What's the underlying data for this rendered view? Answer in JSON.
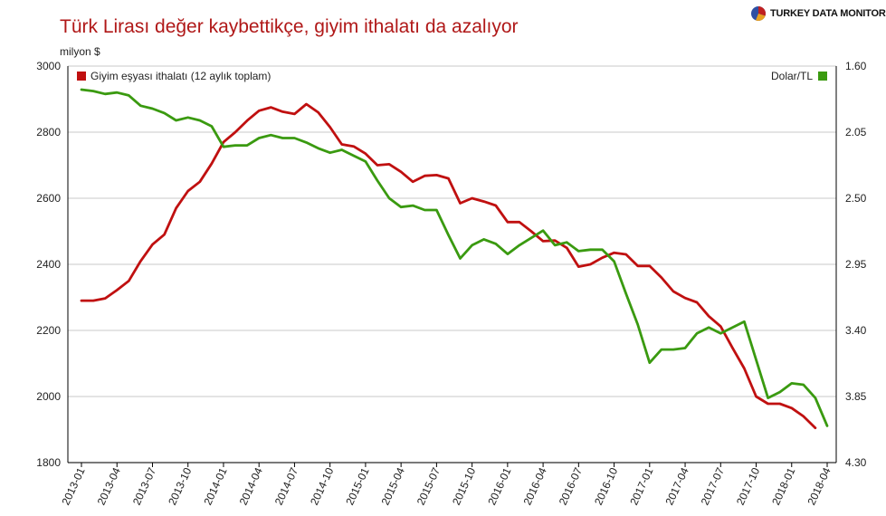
{
  "header": {
    "title": "Türk Lirası değer kaybettikçe, giyim ithalatı da azalıyor",
    "brand": "TURKEY DATA MONITOR",
    "brand_icon": "pie-logo-icon"
  },
  "colors": {
    "title": "#b01818",
    "imports_series": "#c01010",
    "usd_series": "#3a9a10",
    "grid": "#d4d4d4"
  },
  "chart_data": {
    "type": "line",
    "title": "Türk Lirası değer kaybettikçe, giyim ithalatı da azalıyor",
    "ylabel": "milyon $",
    "ylim": [
      1800,
      3000
    ],
    "y_ticks": [
      "1800",
      "2000",
      "2200",
      "2400",
      "2600",
      "2800",
      "3000"
    ],
    "y2lim": [
      1.6,
      4.3
    ],
    "y2_inverted": true,
    "y2_ticks": [
      "1.60",
      "2.05",
      "2.50",
      "2.95",
      "3.40",
      "3.85",
      "4.30"
    ],
    "x_ticks": [
      "2013-01",
      "2013-04",
      "2013-07",
      "2013-10",
      "2014-01",
      "2014-04",
      "2014-07",
      "2014-10",
      "2015-01",
      "2015-04",
      "2015-07",
      "2015-10",
      "2016-01",
      "2016-04",
      "2016-07",
      "2016-10",
      "2017-01",
      "2017-04",
      "2017-07",
      "2017-10",
      "2018-01",
      "2018-04"
    ],
    "grid": true,
    "series": [
      {
        "name": "Giyim eşyası ithalatı (12 aylık toplam)",
        "axis": "left",
        "legend_position": "top-left",
        "start": "2013-01",
        "values": [
          2290,
          2290,
          2297,
          2322,
          2350,
          2410,
          2460,
          2490,
          2570,
          2622,
          2650,
          2705,
          2770,
          2800,
          2835,
          2865,
          2875,
          2862,
          2855,
          2885,
          2860,
          2815,
          2763,
          2757,
          2735,
          2700,
          2703,
          2680,
          2650,
          2668,
          2670,
          2660,
          2585,
          2600,
          2590,
          2578,
          2528,
          2528,
          2500,
          2470,
          2472,
          2450,
          2393,
          2400,
          2420,
          2435,
          2430,
          2395,
          2395,
          2360,
          2318,
          2298,
          2285,
          2243,
          2212,
          2147,
          2085,
          2000,
          1978,
          1978,
          1965,
          1940,
          1905
        ]
      },
      {
        "name": "Dolar/TL",
        "axis": "right",
        "legend_position": "top-right",
        "start": "2013-01",
        "values": [
          1.76,
          1.77,
          1.79,
          1.78,
          1.8,
          1.87,
          1.89,
          1.92,
          1.97,
          1.95,
          1.97,
          2.01,
          2.15,
          2.14,
          2.14,
          2.09,
          2.07,
          2.09,
          2.09,
          2.12,
          2.16,
          2.19,
          2.17,
          2.21,
          2.25,
          2.38,
          2.5,
          2.56,
          2.55,
          2.58,
          2.58,
          2.75,
          2.91,
          2.82,
          2.78,
          2.81,
          2.88,
          2.82,
          2.77,
          2.72,
          2.82,
          2.8,
          2.86,
          2.85,
          2.85,
          2.93,
          3.15,
          3.36,
          3.62,
          3.53,
          3.53,
          3.52,
          3.42,
          3.38,
          3.42,
          3.38,
          3.34,
          3.6,
          3.86,
          3.82,
          3.76,
          3.77,
          3.86,
          4.05
        ]
      }
    ]
  }
}
